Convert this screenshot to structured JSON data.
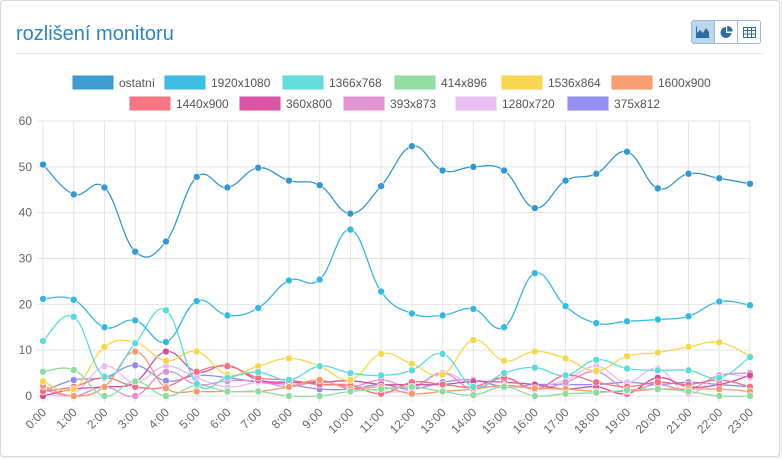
{
  "header": {
    "title": "rozlišení monitoru"
  },
  "toolbar": {
    "buttons": [
      {
        "icon": "area-chart-icon",
        "active": true
      },
      {
        "icon": "pie-chart-icon",
        "active": false
      },
      {
        "icon": "table-icon",
        "active": false
      }
    ]
  },
  "chart_data": {
    "type": "line",
    "title": "",
    "xlabel": "",
    "ylabel": "",
    "ylim": [
      0,
      60
    ],
    "yticks": [
      0,
      10,
      20,
      30,
      40,
      50,
      60
    ],
    "grid": true,
    "legend_position": "top",
    "categories": [
      "0:00",
      "1:00",
      "2:00",
      "3:00",
      "4:00",
      "5:00",
      "6:00",
      "7:00",
      "8:00",
      "9:00",
      "10:00",
      "11:00",
      "12:00",
      "13:00",
      "14:00",
      "15:00",
      "16:00",
      "17:00",
      "18:00",
      "19:00",
      "20:00",
      "21:00",
      "22:00",
      "23:00"
    ],
    "series": [
      {
        "name": "ostatní",
        "color": "#3498cf",
        "values": [
          50.5,
          44,
          45.5,
          31.5,
          33.7,
          47.8,
          45.5,
          49.8,
          47,
          46,
          39.8,
          45.8,
          54.5,
          49.2,
          50,
          49.2,
          41,
          47,
          48.5,
          53.3,
          45.3,
          48.5,
          47.5,
          46.3
        ]
      },
      {
        "name": "1920x1080",
        "color": "#36b9e0",
        "values": [
          21.2,
          21,
          15,
          16.5,
          11.8,
          20.7,
          17.6,
          19.2,
          25.2,
          25.4,
          36.3,
          22.8,
          18,
          17.6,
          19,
          15,
          26.8,
          19.6,
          15.9,
          16.3,
          16.7,
          17.4,
          20.6,
          19.8
        ]
      },
      {
        "name": "1366x768",
        "color": "#5ddbdb",
        "values": [
          12,
          17.3,
          4.2,
          11.5,
          18.7,
          2.7,
          4,
          5.2,
          3.5,
          6.5,
          5,
          4.5,
          5.6,
          9.2,
          2,
          5,
          6.2,
          4.5,
          7.9,
          6,
          5.6,
          5.6,
          4,
          8.5
        ]
      },
      {
        "name": "414x896",
        "color": "#8edba1",
        "values": [
          5.3,
          5.7,
          0,
          3.2,
          0,
          2.3,
          1,
          1,
          0,
          0,
          1,
          1.5,
          2,
          1,
          0.2,
          2,
          0,
          0.5,
          0.7,
          1.3,
          1.5,
          1,
          0,
          0
        ]
      },
      {
        "name": "1536x864",
        "color": "#f7d64c",
        "values": [
          3.2,
          1.5,
          10.7,
          11.7,
          7.7,
          9.7,
          4.7,
          6.5,
          8.2,
          6.5,
          3.5,
          9.2,
          7,
          4.7,
          12.2,
          7.7,
          9.7,
          8.2,
          5.5,
          8.7,
          9.5,
          10.7,
          11.7,
          8.7
        ]
      },
      {
        "name": "1600x900",
        "color": "#f79a6b",
        "values": [
          2.2,
          0,
          2,
          9.7,
          1.7,
          1,
          1,
          1,
          2,
          3.5,
          1.5,
          2,
          0.5,
          1,
          1.5,
          2.3,
          1.7,
          1.5,
          1,
          1,
          1.5,
          1.5,
          1.5,
          1
        ]
      },
      {
        "name": "1440x900",
        "color": "#f4707f",
        "values": [
          1,
          2,
          4,
          2,
          2,
          5.3,
          6.5,
          4,
          3.5,
          2.5,
          2.3,
          0.5,
          3,
          2.5,
          2,
          4,
          1.5,
          4.5,
          3,
          2,
          3,
          2.5,
          3.5,
          2
        ]
      },
      {
        "name": "360x800",
        "color": "#d64da0",
        "values": [
          0,
          1.5,
          2,
          3,
          9.7,
          5.3,
          6.7,
          3.5,
          3,
          3,
          3.3,
          2.5,
          2.5,
          2.5,
          3.2,
          3,
          2.5,
          1.5,
          2,
          0.5,
          4,
          2,
          2.5,
          4.5
        ]
      },
      {
        "name": "393x873",
        "color": "#e08fd0",
        "values": [
          1.5,
          0,
          2,
          0,
          5.3,
          2.5,
          3.3,
          3.2,
          2,
          3.2,
          2,
          3.5,
          2,
          5,
          1.5,
          4,
          1.5,
          3,
          5.3,
          1.5,
          2.5,
          1.5,
          4.5,
          5
        ]
      },
      {
        "name": "1280x720",
        "color": "#e8bdf2",
        "values": [
          0.5,
          0.5,
          6.5,
          3,
          6.5,
          4,
          2,
          3,
          3,
          2.5,
          2.5,
          1,
          1.5,
          5,
          2.5,
          2,
          2,
          3.5,
          6.5,
          3,
          6,
          0.5,
          4.5,
          4
        ]
      },
      {
        "name": "375x812",
        "color": "#8f8af0",
        "values": [
          1,
          3.5,
          4,
          6.7,
          3.3,
          4.5,
          4,
          3,
          2.5,
          1.5,
          1.5,
          2.5,
          1.5,
          3,
          3.5,
          2,
          2.5,
          2.5,
          2.5,
          3,
          2.5,
          3,
          2.5,
          2
        ]
      }
    ]
  }
}
